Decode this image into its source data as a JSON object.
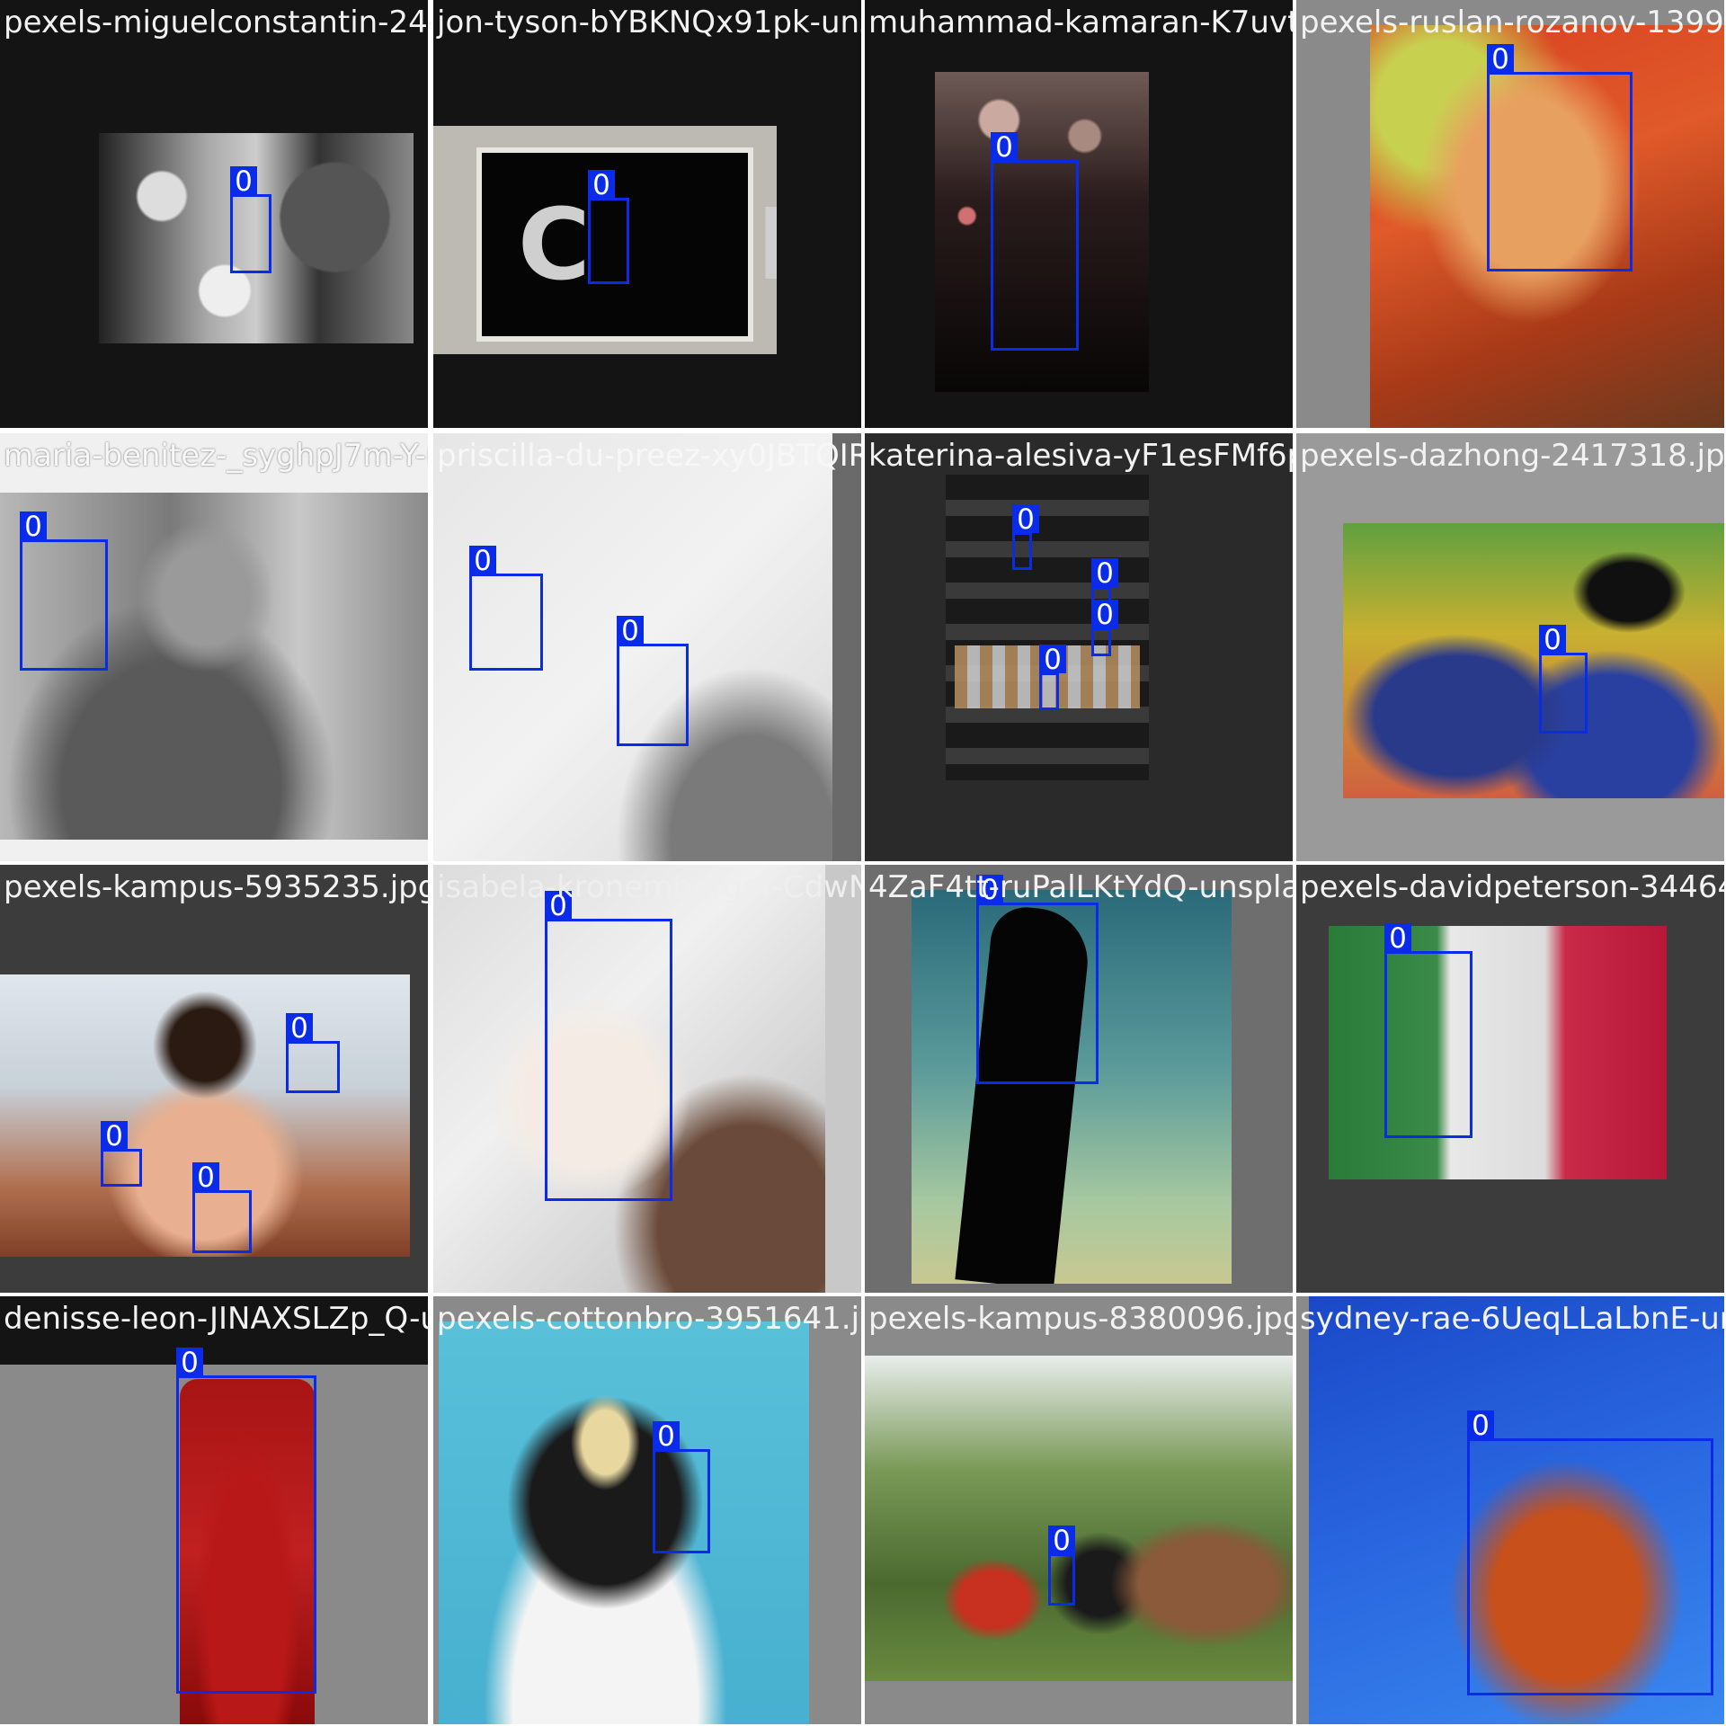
{
  "mosaic": {
    "background": "#ffffff",
    "box_color": "#0a2ce8",
    "tiles": [
      {
        "filename": "pexels-miguelconstantin-2496613.jpg",
        "box_labels": [
          "0"
        ]
      },
      {
        "filename": "jon-tyson-bYBKNQx91pk-unsplash.jpg",
        "box_labels": [
          "0"
        ]
      },
      {
        "filename": "muhammad-kamaran-K7uvt8Rnecdg-unsplash.jpg",
        "box_labels": [
          "0"
        ]
      },
      {
        "filename": "pexels-ruslan-rozanov-1399-953720.jpg",
        "box_labels": [
          "0"
        ]
      },
      {
        "filename": "maria-benitez-_syghpJ7m-Y-unsplash.jpg",
        "box_labels": [
          "0"
        ]
      },
      {
        "filename": "priscilla-du-preez-xy0JBTQIRuY-unsplash.jpg",
        "box_labels": [
          "0",
          "0"
        ]
      },
      {
        "filename": "katerina-alesiva-yF1esFMf6ps-unsplash.jpg",
        "box_labels": [
          "0",
          "0",
          "0",
          "0"
        ]
      },
      {
        "filename": "pexels-dazhong-2417318.jpg",
        "box_labels": [
          "0"
        ]
      },
      {
        "filename": "pexels-kampus-5935235.jpg",
        "box_labels": [
          "0",
          "0",
          "0"
        ]
      },
      {
        "filename": "isabela-kronemberger-CdwNdzjFf41-unsplash.jpg",
        "box_labels": [
          "0"
        ]
      },
      {
        "filename": "4ZaF4tt-ruPalLKtYdQ-unsplash.jpg",
        "box_labels": [
          "0"
        ]
      },
      {
        "filename": "pexels-davidpeterson-34464.jpg",
        "box_labels": [
          "0"
        ]
      },
      {
        "filename": "denisse-leon-JINAXSLZp_Q-unsplash.jpg",
        "box_labels": [
          "0"
        ]
      },
      {
        "filename": "pexels-cottonbro-3951641.jpg",
        "box_labels": [
          "0"
        ]
      },
      {
        "filename": "pexels-kampus-8380096.jpg",
        "box_labels": [
          "0"
        ]
      },
      {
        "filename": "sydney-rae-6UeqLLaLbnE-unsplash.jpg",
        "box_labels": [
          "0"
        ]
      }
    ]
  }
}
